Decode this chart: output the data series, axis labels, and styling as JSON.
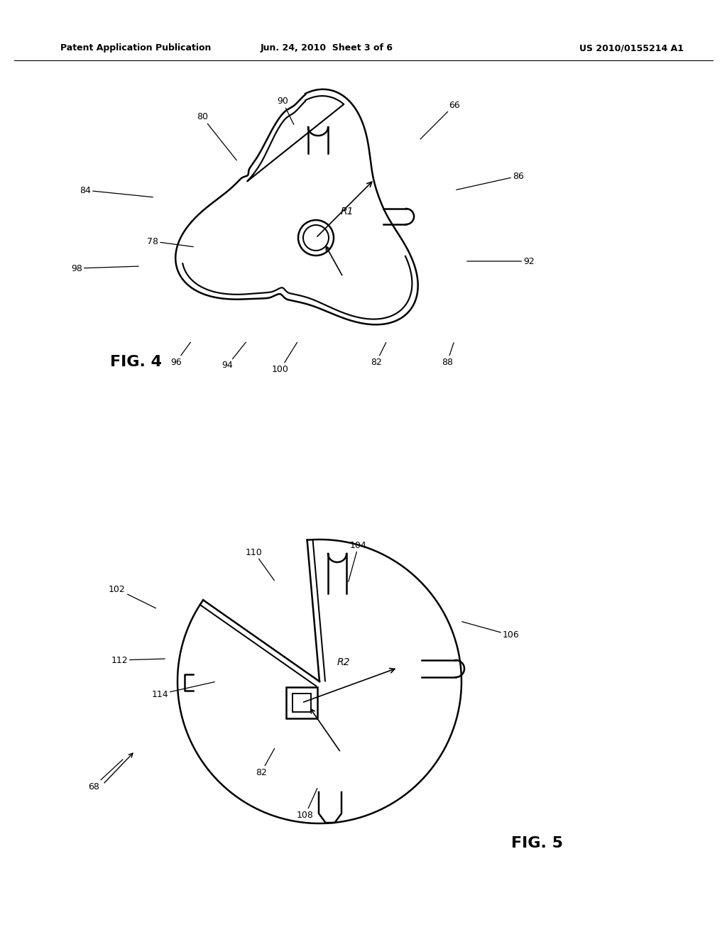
{
  "title_left": "Patent Application Publication",
  "title_center": "Jun. 24, 2010  Sheet 3 of 6",
  "title_right": "US 2010/0155214 A1",
  "fig4_label": "FIG. 4",
  "fig5_label": "FIG. 5",
  "background_color": "#ffffff",
  "line_color": "#000000"
}
